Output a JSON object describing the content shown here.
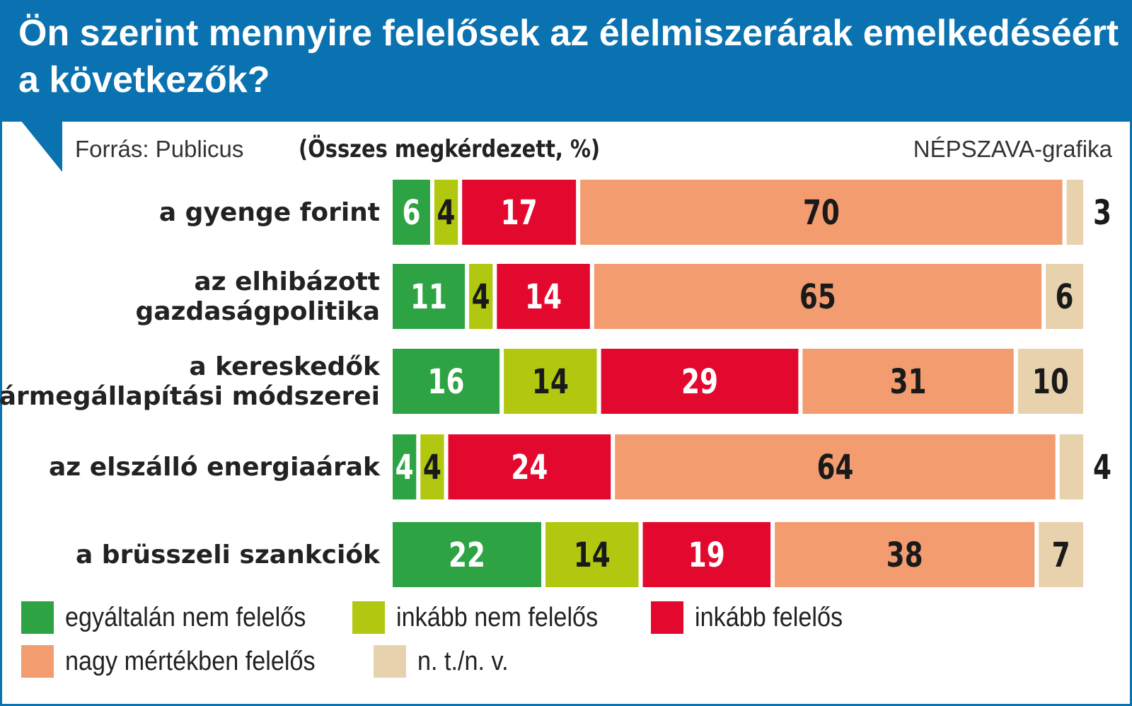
{
  "header": {
    "title": "Ön szerint mennyire felelősek az élelmiszerárak emelkedéséért a következők?",
    "source": "Forrás: Publicus",
    "unit": "(Összes megkérdezett, %)",
    "credit": "NÉPSZAVA-grafika"
  },
  "colors": {
    "header_bg": "#0a72b0",
    "egyaltalan": "#2ea344",
    "inkabb_nem": "#b2c810",
    "inkabb": "#e3092e",
    "nagy": "#f29c70",
    "ntnv": "#e8d2ad"
  },
  "chart_data": {
    "type": "bar",
    "orientation": "horizontal",
    "stacked": true,
    "title": "Ön szerint mennyire felelősek az élelmiszerárak emelkedéséért a következők?",
    "xlabel": "",
    "ylabel": "",
    "categories": [
      [
        "a gyenge forint"
      ],
      [
        "az elhibázott",
        "gazdaságpolitika"
      ],
      [
        "a kereskedők",
        "ármegállapítási módszerei"
      ],
      [
        "az elszálló energiaárak"
      ],
      [
        "a brüsszeli szankciók"
      ]
    ],
    "series": [
      {
        "name": "egyáltalán nem felelős",
        "color": "#2ea344",
        "label_color": "#ffffff",
        "values": [
          6,
          11,
          16,
          4,
          22
        ]
      },
      {
        "name": "inkább nem felelős",
        "color": "#b2c810",
        "label_color": "#1a1a1a",
        "values": [
          4,
          4,
          14,
          4,
          14
        ]
      },
      {
        "name": "inkább felelős",
        "color": "#e3092e",
        "label_color": "#ffffff",
        "values": [
          17,
          14,
          29,
          24,
          19
        ]
      },
      {
        "name": "nagy mértékben felelős",
        "color": "#f29c70",
        "label_color": "#1a1a1a",
        "values": [
          70,
          65,
          31,
          64,
          38
        ]
      },
      {
        "name": "n. t./n. v.",
        "color": "#e8d2ad",
        "label_color": "#1a1a1a",
        "values": [
          3,
          6,
          10,
          4,
          7
        ]
      }
    ],
    "legend_position": "bottom",
    "grid": false
  }
}
